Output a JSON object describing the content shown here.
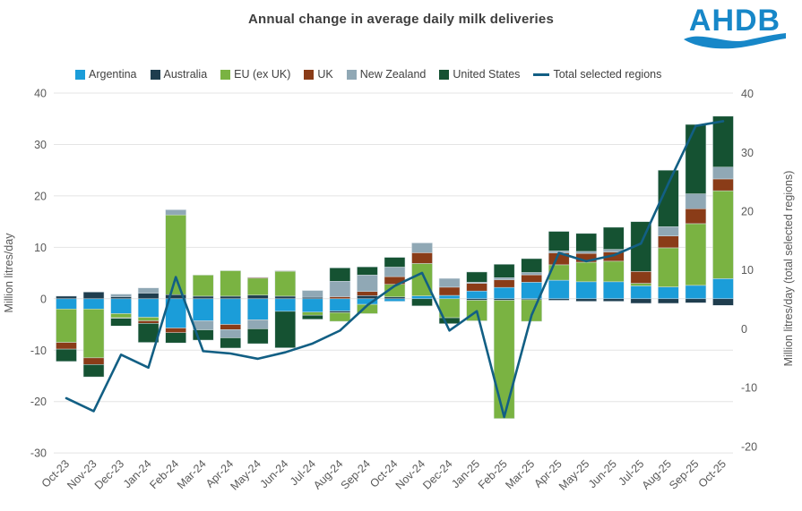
{
  "title": "Annual change in average daily milk deliveries",
  "logo": {
    "text": "AHDB",
    "color": "#1787c8"
  },
  "legend": [
    {
      "label": "Argentina",
      "color": "#1b9dd9",
      "type": "box"
    },
    {
      "label": "Australia",
      "color": "#1f3d4e",
      "type": "box"
    },
    {
      "label": "EU (ex UK)",
      "color": "#7ab342",
      "type": "box"
    },
    {
      "label": "UK",
      "color": "#8a3c18",
      "type": "box"
    },
    {
      "label": "New Zealand",
      "color": "#90a8b5",
      "type": "box"
    },
    {
      "label": "United States",
      "color": "#155232",
      "type": "box"
    },
    {
      "label": "Total selected regions",
      "color": "#125f84",
      "type": "line"
    }
  ],
  "chart_data": {
    "type": "bar",
    "subtype": "stacked-columns-with-line",
    "title": "Annual change in average daily milk deliveries",
    "categories": [
      "Oct-23",
      "Nov-23",
      "Dec-23",
      "Jan-24",
      "Feb-24",
      "Mar-24",
      "Apr-24",
      "May-24",
      "Jun-24",
      "Jul-24",
      "Aug-24",
      "Sep-24",
      "Oct-24",
      "Nov-24",
      "Dec-24",
      "Jan-25",
      "Feb-25",
      "Mar-25",
      "Apr-25",
      "May-25",
      "Jun-25",
      "Jul-25",
      "Aug-25",
      "Sep-25",
      "Oct-25"
    ],
    "series": [
      {
        "name": "Argentina",
        "color": "#1b9dd9",
        "values": [
          -2.0,
          -2.0,
          -2.9,
          -3.6,
          -5.7,
          -4.3,
          -5.0,
          -4.1,
          -2.45,
          -2.6,
          -2.4,
          -1.1,
          -0.5,
          0.55,
          0.65,
          1.5,
          2.2,
          3.2,
          3.6,
          3.3,
          3.3,
          2.5,
          2.3,
          2.6,
          3.9
        ]
      },
      {
        "name": "Australia",
        "color": "#1f3d4e",
        "values": [
          0.5,
          1.3,
          0.4,
          1.1,
          0.8,
          0.5,
          0.5,
          0.7,
          0.5,
          0.3,
          -0.3,
          0.6,
          0.35,
          0.0,
          0.0,
          -0.3,
          -0.3,
          -0.2,
          -0.3,
          -0.5,
          -0.5,
          -0.9,
          -0.9,
          -0.8,
          -1.3
        ]
      },
      {
        "name": "EU (ex UK)",
        "color": "#7ab342",
        "values": [
          -6.5,
          -9.5,
          -0.8,
          -0.7,
          15.5,
          4.1,
          4.95,
          3.3,
          4.85,
          -0.6,
          -1.7,
          -1.8,
          2.45,
          6.3,
          -3.7,
          -4.0,
          -23.0,
          -4.2,
          3.0,
          3.8,
          4.0,
          0.5,
          7.6,
          12.0,
          17.1
        ]
      },
      {
        "name": "UK",
        "color": "#8a3c18",
        "values": [
          -1.3,
          -1.3,
          -0.1,
          -0.5,
          -0.9,
          0.0,
          -1.0,
          0.15,
          0.1,
          0.0,
          0.4,
          0.8,
          1.5,
          2.1,
          1.6,
          1.5,
          1.5,
          1.45,
          2.3,
          1.7,
          1.8,
          2.3,
          2.3,
          2.9,
          2.3
        ]
      },
      {
        "name": "New Zealand",
        "color": "#90a8b5",
        "values": [
          0.0,
          0.0,
          0.5,
          1.0,
          1.0,
          -1.75,
          -1.6,
          -1.75,
          0.0,
          1.3,
          3.0,
          3.2,
          1.85,
          1.9,
          1.7,
          0.2,
          0.4,
          0.45,
          0.4,
          0.4,
          0.5,
          0.0,
          1.8,
          2.9,
          2.3
        ]
      },
      {
        "name": "United States",
        "color": "#155232",
        "values": [
          -2.4,
          -2.4,
          -1.5,
          -3.7,
          -2.0,
          -2.0,
          -2.0,
          -2.9,
          -7.1,
          -0.8,
          2.6,
          1.6,
          1.9,
          -1.4,
          -1.15,
          2.0,
          2.6,
          2.7,
          3.8,
          3.5,
          4.3,
          9.7,
          11.0,
          13.5,
          9.9
        ]
      }
    ],
    "line_series": {
      "name": "Total selected regions",
      "color": "#125f84",
      "axis": "right",
      "values": [
        -11.8,
        -14.0,
        -4.4,
        -6.6,
        8.8,
        -3.8,
        -4.2,
        -5.1,
        -4.0,
        -2.5,
        -0.3,
        4.0,
        7.3,
        9.5,
        -0.3,
        3.0,
        -15.0,
        2.3,
        12.9,
        11.5,
        12.5,
        14.5,
        24.7,
        34.5,
        35.3
      ]
    },
    "left_axis": {
      "label": "Million litres/day",
      "min": -30,
      "max": 40,
      "ticks": [
        40,
        30,
        20,
        10,
        0,
        -10,
        -20,
        -30
      ]
    },
    "right_axis": {
      "label": "Million litres/day (total selected regions)",
      "min": -20,
      "max": 40,
      "ticks": [
        40,
        30,
        20,
        10,
        0,
        -10,
        -20
      ]
    },
    "grid": true,
    "legend_position": "top"
  }
}
